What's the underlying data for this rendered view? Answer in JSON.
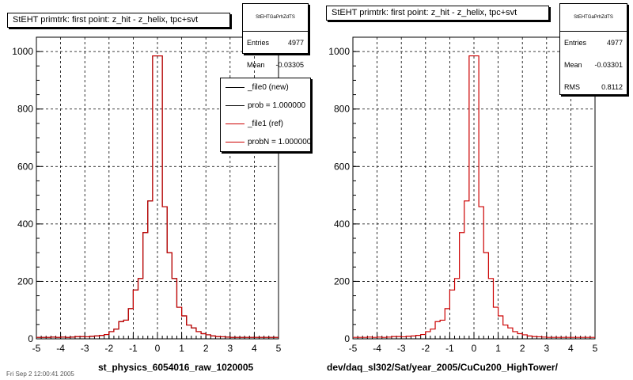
{
  "footer": "Fri Sep  2 12:00:41 2005",
  "colors": {
    "file0": "#000000",
    "file1": "#cc0000",
    "grid": "#000000"
  },
  "left_pad": {
    "title": "StEHT primtrk: first point: z_hit - z_helix, tpc+svt",
    "stats": {
      "name": "StEHTGaPrhZdTS",
      "rows": [
        {
          "label": "Entries",
          "value": "4977"
        },
        {
          "label": "Mean",
          "value": "-0.03305"
        }
      ]
    },
    "legend": [
      {
        "label": "_file0 (new)",
        "color": "#000000"
      },
      {
        "label": "prob = 1.000000",
        "color": "#000000"
      },
      {
        "label": "_file1 (ref)",
        "color": "#cc0000"
      },
      {
        "label": "probN = 1.000000",
        "color": "#cc0000"
      }
    ],
    "xtitle": "st_physics_6054016_raw_1020005"
  },
  "right_pad": {
    "title": "StEHT primtrk: first point: z_hit - z_helix, tpc+svt",
    "stats": {
      "name": "StEHTGaPrhZdTS",
      "rows": [
        {
          "label": "Entries",
          "value": "4977"
        },
        {
          "label": "Mean",
          "value": "-0.03301"
        },
        {
          "label": "RMS",
          "value": "0.8112"
        }
      ]
    },
    "xtitle": "dev/daq_sl302/Sat/year_2005/CuCu200_HighTower/"
  },
  "chart_data": [
    {
      "type": "bar",
      "histogram": true,
      "title": "StEHT primtrk: first point: z_hit - z_helix, tpc+svt",
      "xlabel": "st_physics_6054016_raw_1020005",
      "xlim": [
        -5,
        5
      ],
      "ylim": [
        0,
        1050
      ],
      "xticks": [
        -5,
        -4,
        -3,
        -2,
        -1,
        0,
        1,
        2,
        3,
        4,
        5
      ],
      "yticks": [
        0,
        200,
        400,
        600,
        800,
        1000
      ],
      "grid": true,
      "legend_position": "top-right",
      "bin_edges_start": -5,
      "bin_width": 0.2,
      "series": [
        {
          "name": "_file0 (new)",
          "color": "#000000",
          "values": [
            5,
            5,
            5,
            6,
            5,
            6,
            5,
            6,
            8,
            8,
            7,
            9,
            10,
            12,
            15,
            25,
            34,
            60,
            65,
            105,
            170,
            210,
            370,
            480,
            985,
            985,
            460,
            300,
            210,
            110,
            80,
            48,
            38,
            25,
            18,
            14,
            10,
            8,
            7,
            6,
            5,
            5,
            5,
            5,
            5,
            5,
            5,
            5,
            5,
            5
          ]
        },
        {
          "name": "_file1 (ref)",
          "color": "#cc0000",
          "values": [
            5,
            5,
            5,
            6,
            5,
            6,
            5,
            6,
            8,
            8,
            7,
            9,
            10,
            12,
            15,
            25,
            34,
            60,
            65,
            105,
            170,
            210,
            370,
            480,
            985,
            985,
            460,
            300,
            210,
            110,
            80,
            48,
            38,
            25,
            18,
            14,
            10,
            8,
            7,
            6,
            5,
            5,
            5,
            5,
            5,
            5,
            5,
            5,
            5,
            5
          ]
        }
      ]
    },
    {
      "type": "bar",
      "histogram": true,
      "title": "StEHT primtrk: first point: z_hit - z_helix, tpc+svt",
      "xlabel": "dev/daq_sl302/Sat/year_2005/CuCu200_HighTower/",
      "xlim": [
        -5,
        5
      ],
      "ylim": [
        0,
        1050
      ],
      "xticks": [
        -5,
        -4,
        -3,
        -2,
        -1,
        0,
        1,
        2,
        3,
        4,
        5
      ],
      "yticks": [
        0,
        200,
        400,
        600,
        800,
        1000
      ],
      "grid": true,
      "bin_edges_start": -5,
      "bin_width": 0.2,
      "series": [
        {
          "name": "CuCu200_HighTower",
          "color": "#cc0000",
          "values": [
            5,
            5,
            5,
            6,
            5,
            6,
            5,
            6,
            8,
            8,
            7,
            9,
            10,
            12,
            15,
            25,
            34,
            60,
            65,
            105,
            170,
            210,
            370,
            480,
            985,
            985,
            460,
            300,
            210,
            110,
            80,
            48,
            38,
            25,
            18,
            14,
            10,
            8,
            7,
            6,
            5,
            5,
            5,
            5,
            5,
            5,
            5,
            5,
            5,
            5
          ]
        }
      ]
    }
  ]
}
